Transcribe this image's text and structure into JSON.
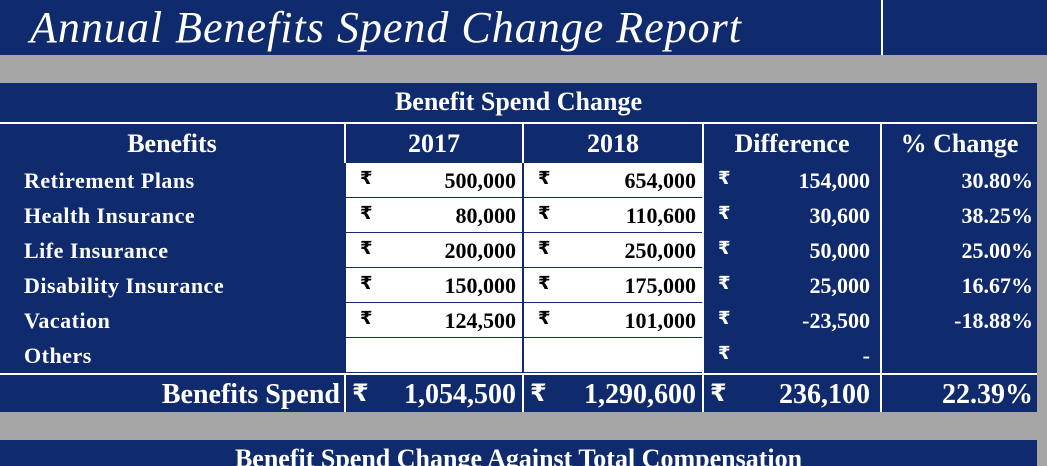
{
  "header": {
    "title": "Annual Benefits Spend Change Report"
  },
  "table": {
    "title": "Benefit Spend Change",
    "currency": "₹",
    "columns": [
      "Benefits",
      "2017",
      "2018",
      "Difference",
      "% Change"
    ],
    "rows": [
      [
        "Retirement Plans",
        "500,000",
        "654,000",
        "154,000",
        "30.80%"
      ],
      [
        "Health Insurance",
        "80,000",
        "110,600",
        "30,600",
        "38.25%"
      ],
      [
        "Life Insurance",
        "200,000",
        "250,000",
        "50,000",
        "25.00%"
      ],
      [
        "Disability Insurance",
        "150,000",
        "175,000",
        "25,000",
        "16.67%"
      ],
      [
        "Vacation",
        "124,500",
        "101,000",
        "-23,500",
        "-18.88%"
      ],
      [
        "Others",
        null,
        null,
        "-",
        null
      ]
    ],
    "total": [
      "Benefits Spend",
      "1,054,500",
      "1,290,600",
      "236,100",
      "22.39%"
    ]
  },
  "next_section": {
    "title": "Benefit Spend Change Against Total Compensation"
  }
}
